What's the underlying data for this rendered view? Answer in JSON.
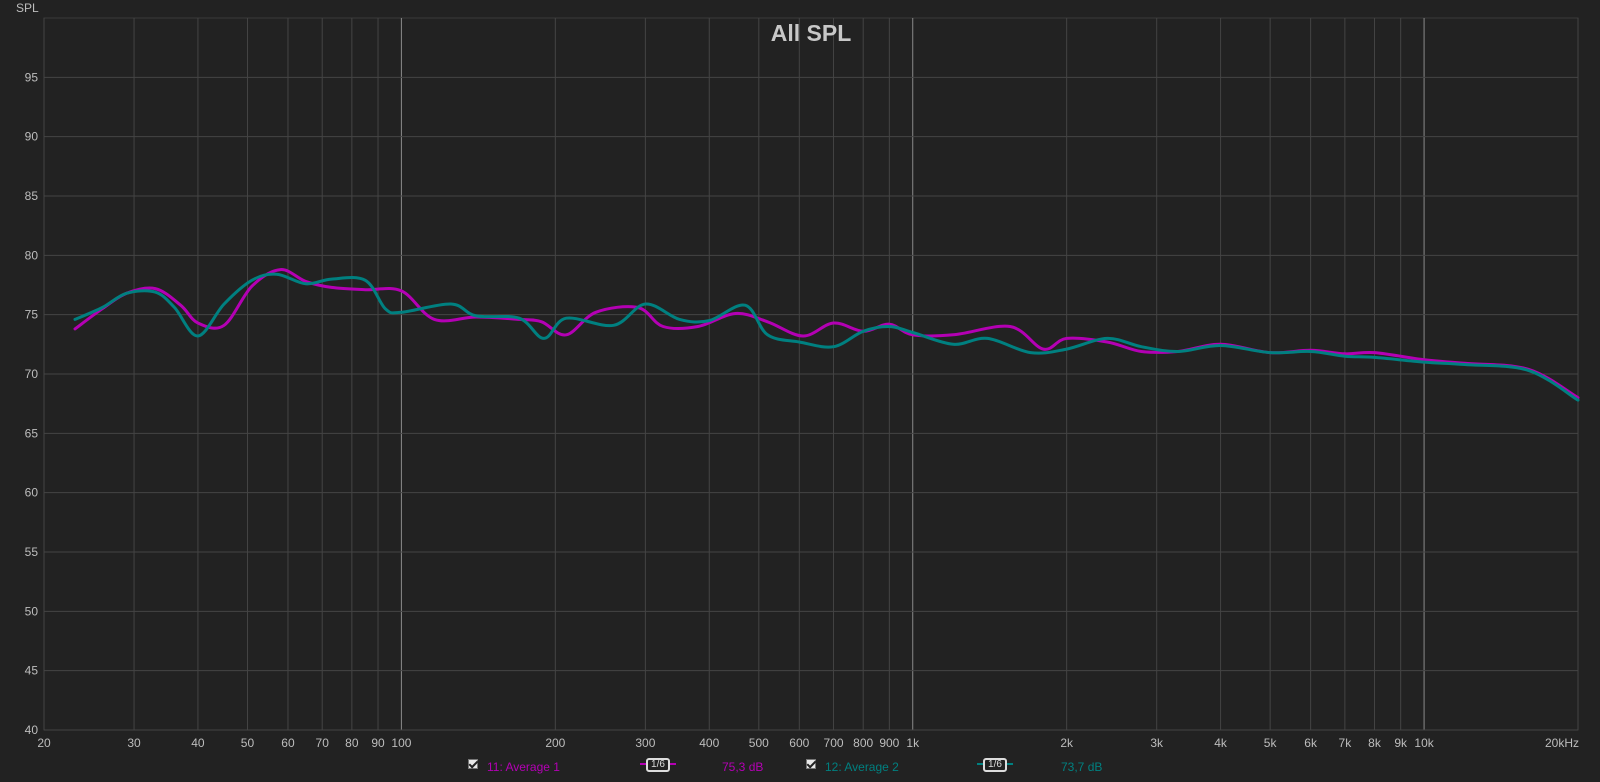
{
  "chart_data": {
    "type": "line",
    "title": "All SPL",
    "ylabel": "SPL",
    "xlabel": "",
    "x_scale": "log",
    "xlim": [
      20,
      20000
    ],
    "ylim": [
      40,
      100
    ],
    "grid": true,
    "x_ticks": [
      {
        "value": 20,
        "label": "20"
      },
      {
        "value": 30,
        "label": "30"
      },
      {
        "value": 40,
        "label": "40"
      },
      {
        "value": 50,
        "label": "50"
      },
      {
        "value": 60,
        "label": "60"
      },
      {
        "value": 70,
        "label": "70"
      },
      {
        "value": 80,
        "label": "80"
      },
      {
        "value": 90,
        "label": "90"
      },
      {
        "value": 100,
        "label": "100"
      },
      {
        "value": 200,
        "label": "200"
      },
      {
        "value": 300,
        "label": "300"
      },
      {
        "value": 400,
        "label": "400"
      },
      {
        "value": 500,
        "label": "500"
      },
      {
        "value": 600,
        "label": "600"
      },
      {
        "value": 700,
        "label": "700"
      },
      {
        "value": 800,
        "label": "800"
      },
      {
        "value": 900,
        "label": "900"
      },
      {
        "value": 1000,
        "label": "1k"
      },
      {
        "value": 2000,
        "label": "2k"
      },
      {
        "value": 3000,
        "label": "3k"
      },
      {
        "value": 4000,
        "label": "4k"
      },
      {
        "value": 5000,
        "label": "5k"
      },
      {
        "value": 6000,
        "label": "6k"
      },
      {
        "value": 7000,
        "label": "7k"
      },
      {
        "value": 8000,
        "label": "8k"
      },
      {
        "value": 9000,
        "label": "9k"
      },
      {
        "value": 10000,
        "label": "10k"
      },
      {
        "value": 20000,
        "label": "20kHz"
      }
    ],
    "y_ticks": [
      {
        "value": 40,
        "label": "40"
      },
      {
        "value": 45,
        "label": "45"
      },
      {
        "value": 50,
        "label": "50"
      },
      {
        "value": 55,
        "label": "55"
      },
      {
        "value": 60,
        "label": "60"
      },
      {
        "value": 65,
        "label": "65"
      },
      {
        "value": 70,
        "label": "70"
      },
      {
        "value": 75,
        "label": "75"
      },
      {
        "value": 80,
        "label": "80"
      },
      {
        "value": 85,
        "label": "85"
      },
      {
        "value": 90,
        "label": "90"
      },
      {
        "value": 95,
        "label": "95"
      }
    ],
    "series": [
      {
        "name": "11: Average 1",
        "color": "#b400b4",
        "x": [
          23,
          26,
          29,
          33,
          37,
          40,
          45,
          51,
          58,
          65,
          73,
          85,
          100,
          116,
          140,
          170,
          188,
          210,
          240,
          290,
          325,
          380,
          450,
          520,
          610,
          700,
          800,
          900,
          1000,
          1200,
          1550,
          1800,
          2000,
          2400,
          2800,
          3300,
          4000,
          5000,
          6000,
          7000,
          8000,
          10000,
          12000,
          16000,
          20000
        ],
        "y": [
          73.8,
          75.5,
          76.8,
          77.2,
          75.8,
          74.3,
          74.1,
          77.4,
          78.8,
          77.8,
          77.3,
          77.1,
          77.0,
          74.6,
          74.8,
          74.6,
          74.4,
          73.3,
          75.2,
          75.6,
          74.0,
          74.0,
          75.1,
          74.4,
          73.2,
          74.3,
          73.6,
          74.2,
          73.3,
          73.3,
          74.0,
          72.1,
          73.0,
          72.7,
          71.9,
          71.9,
          72.5,
          71.8,
          72.0,
          71.7,
          71.8,
          71.2,
          70.9,
          70.4,
          68.0
        ]
      },
      {
        "name": "12: Average 2",
        "color": "#008080",
        "x": [
          23,
          26,
          29,
          33,
          36,
          40,
          45,
          51,
          57,
          65,
          73,
          85,
          93,
          100,
          125,
          140,
          170,
          190,
          210,
          260,
          300,
          350,
          400,
          470,
          520,
          600,
          700,
          800,
          900,
          1000,
          1200,
          1400,
          1700,
          2000,
          2400,
          2800,
          3300,
          4000,
          5000,
          6000,
          7000,
          8000,
          10000,
          12000,
          16000,
          20000
        ],
        "y": [
          74.6,
          75.6,
          76.8,
          76.9,
          75.6,
          73.2,
          75.9,
          77.9,
          78.4,
          77.6,
          78.0,
          77.9,
          75.5,
          75.2,
          75.9,
          74.9,
          74.7,
          73.0,
          74.7,
          74.1,
          75.9,
          74.6,
          74.5,
          75.8,
          73.3,
          72.7,
          72.3,
          73.6,
          74.0,
          73.5,
          72.5,
          73.0,
          71.8,
          72.1,
          73.0,
          72.3,
          71.9,
          72.4,
          71.8,
          71.9,
          71.5,
          71.4,
          71.0,
          70.8,
          70.3,
          67.8
        ]
      }
    ]
  },
  "legend": {
    "items": [
      {
        "name": "11: Average 1",
        "smoothing": "1/6",
        "level": "75,3 dB",
        "color": "#b400b4"
      },
      {
        "name": "12: Average 2",
        "smoothing": "1/6",
        "level": "73,7 dB",
        "color": "#008080"
      }
    ]
  }
}
